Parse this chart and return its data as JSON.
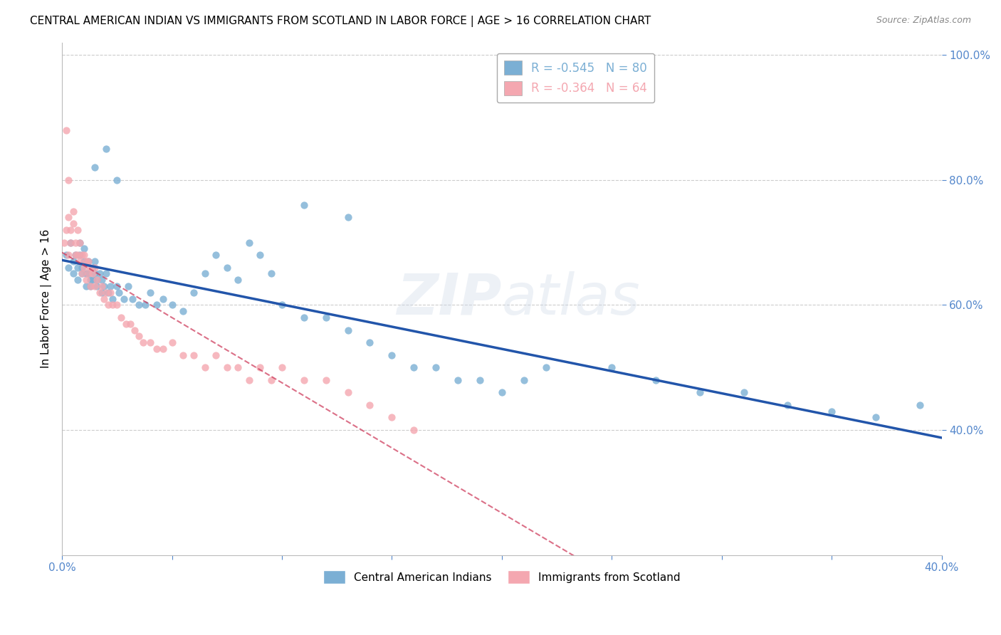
{
  "title": "CENTRAL AMERICAN INDIAN VS IMMIGRANTS FROM SCOTLAND IN LABOR FORCE | AGE > 16 CORRELATION CHART",
  "source": "Source: ZipAtlas.com",
  "ylabel": "In Labor Force | Age > 16",
  "xlim": [
    0.0,
    0.4
  ],
  "ylim": [
    0.2,
    1.02
  ],
  "y_ticks": [
    0.4,
    0.6,
    0.8,
    1.0
  ],
  "y_tick_labels": [
    "40.0%",
    "60.0%",
    "80.0%",
    "100.0%"
  ],
  "x_ticks": [
    0.0,
    0.05,
    0.1,
    0.15,
    0.2,
    0.25,
    0.3,
    0.35,
    0.4
  ],
  "x_tick_labels": [
    "0.0%",
    "",
    "",
    "",
    "",
    "",
    "",
    "",
    "40.0%"
  ],
  "blue_color": "#7bafd4",
  "pink_color": "#f4a7b0",
  "blue_line_color": "#2255aa",
  "pink_line_color": "#cc3355",
  "blue_R": "-0.545",
  "blue_N": "80",
  "pink_R": "-0.364",
  "pink_N": "64",
  "legend_label_blue": "Central American Indians",
  "legend_label_pink": "Immigrants from Scotland",
  "watermark_top": "ZIP",
  "watermark_bot": "atlas",
  "axis_color": "#5588cc",
  "tick_color": "#5588cc",
  "grid_color": "#cccccc",
  "title_fontsize": 11,
  "source_fontsize": 9,
  "blue_scatter_x": [
    0.002,
    0.003,
    0.004,
    0.005,
    0.005,
    0.006,
    0.007,
    0.007,
    0.008,
    0.008,
    0.009,
    0.009,
    0.01,
    0.01,
    0.011,
    0.011,
    0.012,
    0.012,
    0.013,
    0.013,
    0.014,
    0.014,
    0.015,
    0.015,
    0.016,
    0.016,
    0.017,
    0.018,
    0.018,
    0.019,
    0.02,
    0.021,
    0.022,
    0.023,
    0.025,
    0.026,
    0.028,
    0.03,
    0.032,
    0.035,
    0.038,
    0.04,
    0.043,
    0.046,
    0.05,
    0.055,
    0.06,
    0.065,
    0.07,
    0.075,
    0.08,
    0.085,
    0.09,
    0.095,
    0.1,
    0.11,
    0.12,
    0.13,
    0.14,
    0.15,
    0.16,
    0.17,
    0.18,
    0.19,
    0.2,
    0.21,
    0.22,
    0.25,
    0.27,
    0.29,
    0.31,
    0.33,
    0.35,
    0.37,
    0.39,
    0.015,
    0.02,
    0.025,
    0.11,
    0.13
  ],
  "blue_scatter_y": [
    0.68,
    0.66,
    0.7,
    0.67,
    0.65,
    0.68,
    0.66,
    0.64,
    0.7,
    0.68,
    0.66,
    0.65,
    0.69,
    0.67,
    0.65,
    0.63,
    0.67,
    0.65,
    0.64,
    0.63,
    0.66,
    0.64,
    0.67,
    0.65,
    0.64,
    0.63,
    0.65,
    0.64,
    0.62,
    0.63,
    0.65,
    0.62,
    0.63,
    0.61,
    0.63,
    0.62,
    0.61,
    0.63,
    0.61,
    0.6,
    0.6,
    0.62,
    0.6,
    0.61,
    0.6,
    0.59,
    0.62,
    0.65,
    0.68,
    0.66,
    0.64,
    0.7,
    0.68,
    0.65,
    0.6,
    0.58,
    0.58,
    0.56,
    0.54,
    0.52,
    0.5,
    0.5,
    0.48,
    0.48,
    0.46,
    0.48,
    0.5,
    0.5,
    0.48,
    0.46,
    0.46,
    0.44,
    0.43,
    0.42,
    0.44,
    0.82,
    0.85,
    0.8,
    0.76,
    0.74
  ],
  "pink_scatter_x": [
    0.001,
    0.002,
    0.003,
    0.003,
    0.004,
    0.004,
    0.005,
    0.005,
    0.006,
    0.006,
    0.007,
    0.007,
    0.008,
    0.008,
    0.009,
    0.009,
    0.01,
    0.01,
    0.011,
    0.011,
    0.012,
    0.012,
    0.013,
    0.013,
    0.014,
    0.015,
    0.015,
    0.016,
    0.017,
    0.018,
    0.019,
    0.02,
    0.021,
    0.022,
    0.023,
    0.025,
    0.027,
    0.029,
    0.031,
    0.033,
    0.035,
    0.037,
    0.04,
    0.043,
    0.046,
    0.05,
    0.055,
    0.06,
    0.065,
    0.07,
    0.075,
    0.08,
    0.085,
    0.09,
    0.095,
    0.1,
    0.11,
    0.12,
    0.13,
    0.14,
    0.15,
    0.16,
    0.002,
    0.003
  ],
  "pink_scatter_y": [
    0.7,
    0.72,
    0.68,
    0.74,
    0.7,
    0.72,
    0.75,
    0.73,
    0.7,
    0.68,
    0.72,
    0.68,
    0.7,
    0.67,
    0.68,
    0.65,
    0.68,
    0.66,
    0.67,
    0.64,
    0.67,
    0.65,
    0.66,
    0.63,
    0.65,
    0.66,
    0.63,
    0.64,
    0.62,
    0.63,
    0.61,
    0.62,
    0.6,
    0.62,
    0.6,
    0.6,
    0.58,
    0.57,
    0.57,
    0.56,
    0.55,
    0.54,
    0.54,
    0.53,
    0.53,
    0.54,
    0.52,
    0.52,
    0.5,
    0.52,
    0.5,
    0.5,
    0.48,
    0.5,
    0.48,
    0.5,
    0.48,
    0.48,
    0.46,
    0.44,
    0.42,
    0.4,
    0.88,
    0.8
  ]
}
